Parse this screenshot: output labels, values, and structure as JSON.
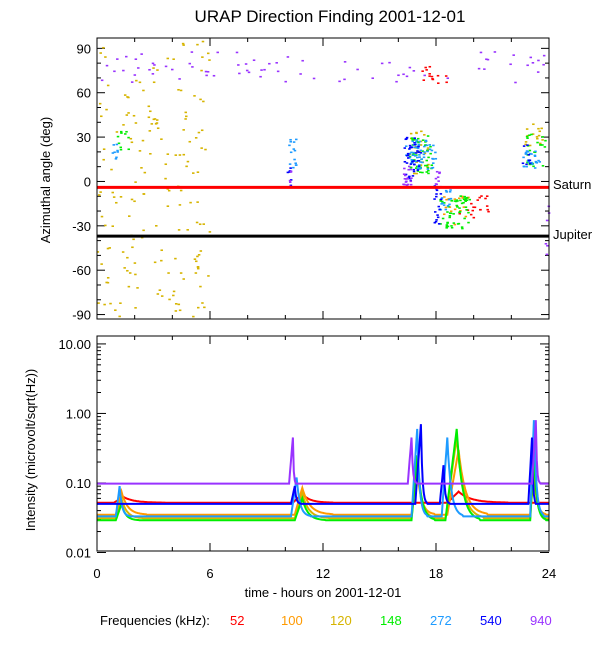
{
  "chart_data": [
    {
      "type": "scatter",
      "title": "URAP Direction Finding  2001-12-01",
      "xlabel": "",
      "ylabel": "Azimuthal angle (deg)",
      "xlim": [
        0,
        24
      ],
      "ylim": [
        -93,
        97
      ],
      "yticks": [
        -90,
        -60,
        -30,
        0,
        30,
        60,
        90
      ],
      "ytick_labels": [
        "-90",
        "-60",
        "-30",
        "0",
        "30",
        "60",
        "90"
      ],
      "reference_lines": [
        {
          "name": "Saturn",
          "y": -4,
          "color": "#ff0000"
        },
        {
          "name": "Jupiter",
          "y": -37,
          "color": "#000000"
        }
      ],
      "clusters": [
        {
          "freq": "120",
          "color": "#d6b400",
          "x": [
            0,
            6
          ],
          "y": [
            -92,
            96
          ],
          "n": 170
        },
        {
          "freq": "940",
          "color": "#9933ff",
          "x": [
            0.2,
            24
          ],
          "y": [
            66,
            88
          ],
          "n": 75
        },
        {
          "freq": "52",
          "color": "#ff0000",
          "x": [
            17.2,
            18.6
          ],
          "y": [
            64,
            78
          ],
          "n": 14
        },
        {
          "freq": "148",
          "color": "#00ee00",
          "x": [
            1.1,
            1.7
          ],
          "y": [
            18,
            35
          ],
          "n": 10
        },
        {
          "freq": "272",
          "color": "#1e9bff",
          "x": [
            0.8,
            1.1
          ],
          "y": [
            12,
            26
          ],
          "n": 8
        },
        {
          "freq": "272",
          "color": "#1e9bff",
          "x": [
            10.2,
            10.6
          ],
          "y": [
            5,
            30
          ],
          "n": 14
        },
        {
          "freq": "540",
          "color": "#0000ff",
          "x": [
            10.1,
            10.3
          ],
          "y": [
            -4,
            10
          ],
          "n": 6
        },
        {
          "freq": "940",
          "color": "#9933ff",
          "x": [
            10.1,
            10.3
          ],
          "y": [
            -5,
            8
          ],
          "n": 5
        },
        {
          "freq": "120",
          "color": "#d6b400",
          "x": [
            16.6,
            17.6
          ],
          "y": [
            5,
            35
          ],
          "n": 30
        },
        {
          "freq": "148",
          "color": "#00ee00",
          "x": [
            16.6,
            17.8
          ],
          "y": [
            5,
            32
          ],
          "n": 45
        },
        {
          "freq": "272",
          "color": "#1e9bff",
          "x": [
            16.4,
            18.0
          ],
          "y": [
            8,
            28
          ],
          "n": 60
        },
        {
          "freq": "540",
          "color": "#0000ff",
          "x": [
            16.3,
            17.2
          ],
          "y": [
            0,
            30
          ],
          "n": 40
        },
        {
          "freq": "940",
          "color": "#9933ff",
          "x": [
            16.2,
            16.7
          ],
          "y": [
            -3,
            12
          ],
          "n": 20
        },
        {
          "freq": "52",
          "color": "#ff0000",
          "x": [
            19.2,
            20.8
          ],
          "y": [
            -25,
            -10
          ],
          "n": 18
        },
        {
          "freq": "100",
          "color": "#ff9a00",
          "x": [
            18.4,
            19.8
          ],
          "y": [
            -30,
            -10
          ],
          "n": 20
        },
        {
          "freq": "148",
          "color": "#00ee00",
          "x": [
            18.2,
            19.8
          ],
          "y": [
            -32,
            -10
          ],
          "n": 55
        },
        {
          "freq": "272",
          "color": "#1e9bff",
          "x": [
            18.0,
            18.8
          ],
          "y": [
            -20,
            -5
          ],
          "n": 15
        },
        {
          "freq": "540",
          "color": "#0000ff",
          "x": [
            17.9,
            18.3
          ],
          "y": [
            -30,
            -3
          ],
          "n": 20
        },
        {
          "freq": "940",
          "color": "#9933ff",
          "x": [
            17.9,
            18.2
          ],
          "y": [
            -5,
            10
          ],
          "n": 10
        },
        {
          "freq": "120",
          "color": "#d6b400",
          "x": [
            22.7,
            23.7
          ],
          "y": [
            20,
            42
          ],
          "n": 15
        },
        {
          "freq": "148",
          "color": "#00ee00",
          "x": [
            22.8,
            23.8
          ],
          "y": [
            10,
            32
          ],
          "n": 25
        },
        {
          "freq": "272",
          "color": "#1e9bff",
          "x": [
            22.5,
            23.6
          ],
          "y": [
            8,
            22
          ],
          "n": 25
        },
        {
          "freq": "540",
          "color": "#0000ff",
          "x": [
            22.6,
            23.0
          ],
          "y": [
            10,
            25
          ],
          "n": 8
        },
        {
          "freq": "940",
          "color": "#9933ff",
          "x": [
            23.8,
            24.0
          ],
          "y": [
            -55,
            -15
          ],
          "n": 6
        }
      ]
    },
    {
      "type": "line",
      "title": "",
      "xlabel": "time - hours on 2001-12-01",
      "ylabel": "Intensity (microvolt/sqrt(Hz))",
      "yscale": "log",
      "xlim": [
        0,
        24
      ],
      "ylim": [
        0.0105,
        13.0
      ],
      "xticks": [
        0,
        6,
        12,
        18,
        24
      ],
      "xtick_labels": [
        "0",
        "6",
        "12",
        "18",
        "24"
      ],
      "yticks": [
        0.01,
        0.1,
        1.0,
        10.0
      ],
      "ytick_labels": [
        "0.01",
        "0.10",
        "1.00",
        "10.00"
      ],
      "series": [
        {
          "name": "52",
          "color": "#ff0000",
          "baseline": 0.052,
          "bursts": [
            {
              "t0": 0.9,
              "peak": 0.063,
              "rise": 0.5,
              "decay": 2.2
            },
            {
              "t0": 10.4,
              "peak": 0.07,
              "rise": 0.5,
              "decay": 1.6
            },
            {
              "t0": 18.6,
              "peak": 0.075,
              "rise": 0.6,
              "decay": 2.6
            }
          ]
        },
        {
          "name": "100",
          "color": "#ff9a00",
          "baseline": 0.035,
          "bursts": [
            {
              "t0": 1.0,
              "peak": 0.075,
              "rise": 0.3,
              "decay": 1.3
            },
            {
              "t0": 10.5,
              "peak": 0.085,
              "rise": 0.4,
              "decay": 1.6
            },
            {
              "t0": 16.7,
              "peak": 0.15,
              "rise": 0.3,
              "decay": 0.9
            },
            {
              "t0": 18.6,
              "peak": 0.3,
              "rise": 0.6,
              "decay": 1.5
            },
            {
              "t0": 23.0,
              "peak": 0.14,
              "rise": 0.2,
              "decay": 0.6
            }
          ]
        },
        {
          "name": "120",
          "color": "#d6b400",
          "baseline": 0.031,
          "bursts": [
            {
              "t0": 1.0,
              "peak": 0.06,
              "rise": 0.3,
              "decay": 1.1
            },
            {
              "t0": 10.5,
              "peak": 0.07,
              "rise": 0.4,
              "decay": 1.4
            },
            {
              "t0": 16.7,
              "peak": 0.2,
              "rise": 0.3,
              "decay": 0.9
            },
            {
              "t0": 18.5,
              "peak": 0.45,
              "rise": 0.6,
              "decay": 1.4
            },
            {
              "t0": 23.0,
              "peak": 0.2,
              "rise": 0.2,
              "decay": 0.6
            }
          ]
        },
        {
          "name": "148",
          "color": "#00ee00",
          "baseline": 0.029,
          "bursts": [
            {
              "t0": 1.0,
              "peak": 0.05,
              "rise": 0.3,
              "decay": 0.9
            },
            {
              "t0": 10.5,
              "peak": 0.06,
              "rise": 0.4,
              "decay": 1.2
            },
            {
              "t0": 16.7,
              "peak": 0.25,
              "rise": 0.3,
              "decay": 0.9
            },
            {
              "t0": 18.5,
              "peak": 0.6,
              "rise": 0.6,
              "decay": 1.2
            },
            {
              "t0": 23.0,
              "peak": 0.25,
              "rise": 0.2,
              "decay": 0.6
            }
          ]
        },
        {
          "name": "272",
          "color": "#1e9bff",
          "baseline": 0.033,
          "bursts": [
            {
              "t0": 1.0,
              "peak": 0.09,
              "rise": 0.2,
              "decay": 0.5
            },
            {
              "t0": 10.3,
              "peak": 0.12,
              "rise": 0.3,
              "decay": 0.7
            },
            {
              "t0": 16.7,
              "peak": 0.6,
              "rise": 0.3,
              "decay": 0.5
            },
            {
              "t0": 18.3,
              "peak": 0.45,
              "rise": 0.3,
              "decay": 0.8
            },
            {
              "t0": 23.0,
              "peak": 0.8,
              "rise": 0.2,
              "decay": 0.5
            }
          ]
        },
        {
          "name": "540",
          "color": "#0000ff",
          "baseline": 0.05,
          "bursts": [
            {
              "t0": 10.3,
              "peak": 0.09,
              "rise": 0.2,
              "decay": 0.3
            },
            {
              "t0": 16.9,
              "peak": 0.7,
              "rise": 0.3,
              "decay": 0.3
            },
            {
              "t0": 18.2,
              "peak": 0.18,
              "rise": 0.2,
              "decay": 0.3
            },
            {
              "t0": 22.9,
              "peak": 0.45,
              "rise": 0.2,
              "decay": 0.2
            }
          ]
        },
        {
          "name": "940",
          "color": "#9933ff",
          "baseline": 0.098,
          "bursts": [
            {
              "t0": 10.2,
              "peak": 0.45,
              "rise": 0.2,
              "decay": 0.15
            },
            {
              "t0": 16.5,
              "peak": 0.45,
              "rise": 0.2,
              "decay": 0.25
            },
            {
              "t0": 23.1,
              "peak": 0.8,
              "rise": 0.2,
              "decay": 0.2
            }
          ]
        }
      ]
    }
  ],
  "legend": {
    "label": "Frequencies (kHz):",
    "items": [
      {
        "label": "52",
        "color": "#ff0000"
      },
      {
        "label": "100",
        "color": "#ff9a00"
      },
      {
        "label": "120",
        "color": "#d6b400"
      },
      {
        "label": "148",
        "color": "#00ee00"
      },
      {
        "label": "272",
        "color": "#1e9bff"
      },
      {
        "label": "540",
        "color": "#0000ff"
      },
      {
        "label": "940",
        "color": "#9933ff"
      }
    ]
  }
}
